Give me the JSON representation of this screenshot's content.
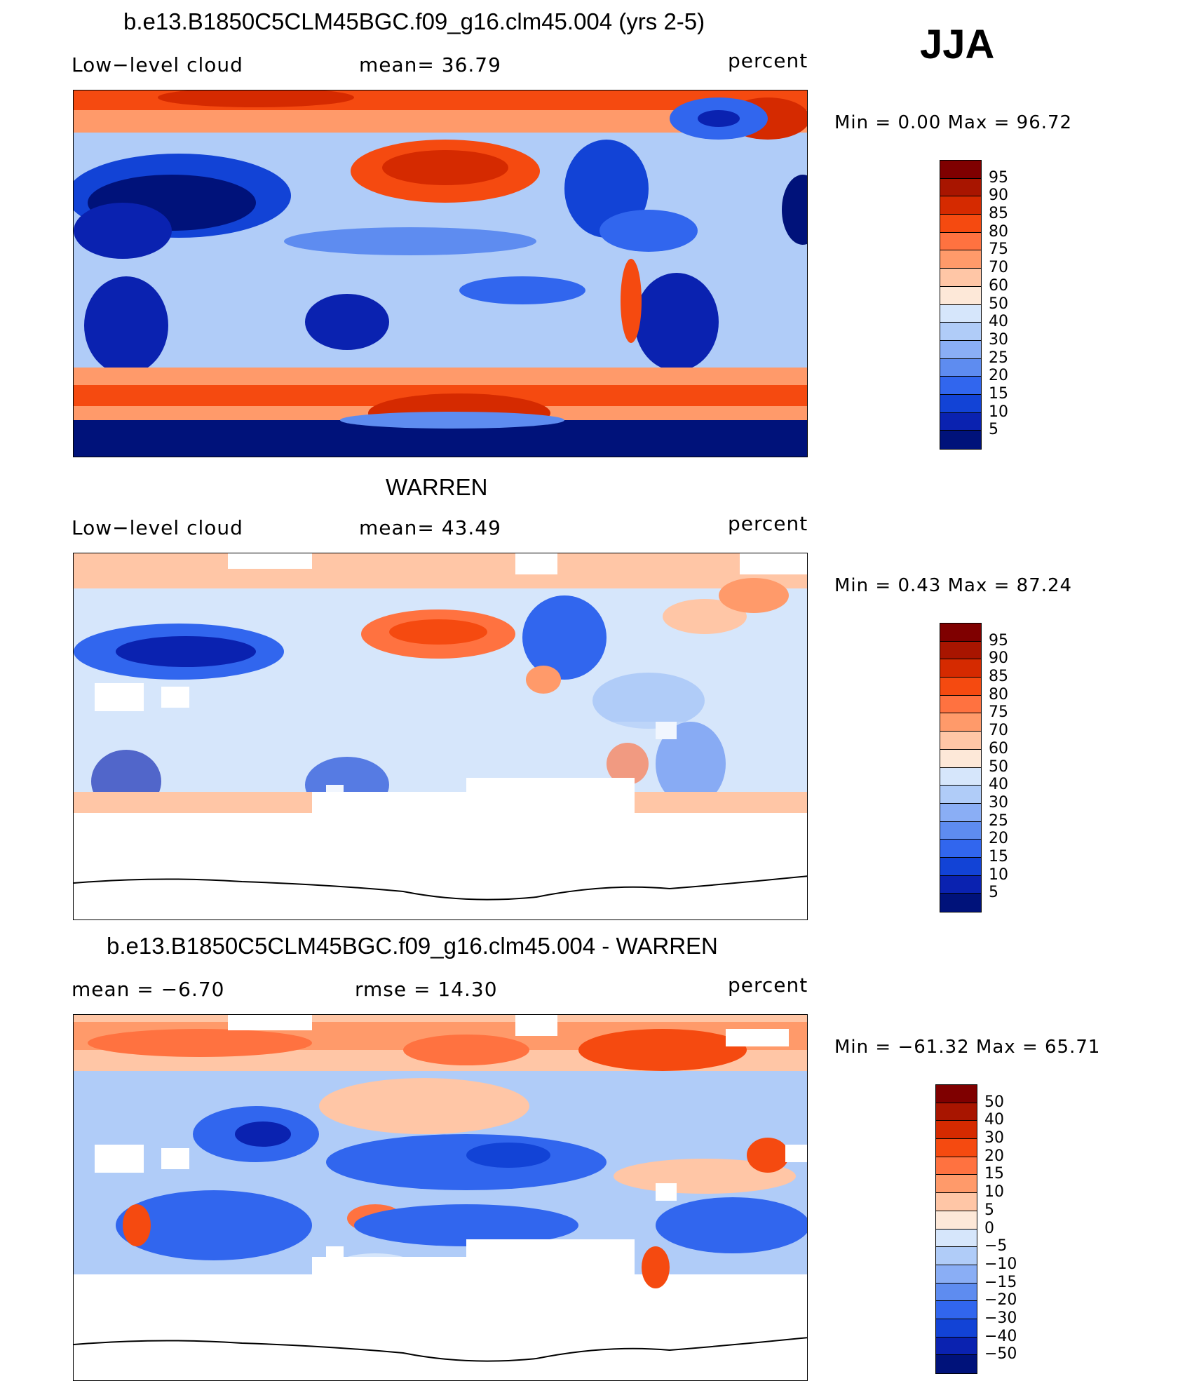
{
  "season": "JJA",
  "panels": [
    {
      "id": "model",
      "title": "b.e13.B1850C5CLM45BGC.f09_g16.clm45.004 (yrs 2-5)",
      "left_label": "Low−level  cloud",
      "mid_label": "mean=   36.79",
      "units": "percent",
      "minmax": "Min  =      0.00  Max  =     96.72",
      "colorbar": {
        "labels": [
          "95",
          "90",
          "85",
          "80",
          "75",
          "70",
          "60",
          "50",
          "40",
          "30",
          "25",
          "20",
          "15",
          "10",
          "5"
        ],
        "colors": [
          "#7f0000",
          "#a81500",
          "#d52a00",
          "#f54a10",
          "#ff7240",
          "#ff9a6a",
          "#ffc6a6",
          "#fde8d8",
          "#d6e6fb",
          "#b0ccf8",
          "#8aaef5",
          "#5e8cf0",
          "#3166ee",
          "#1243d6",
          "#0a22b0",
          "#00127a"
        ]
      }
    },
    {
      "id": "obs",
      "title": "WARREN",
      "left_label": "Low−level  cloud",
      "mid_label": "mean=   43.49",
      "units": "percent",
      "minmax": "Min  =      0.43  Max  =     87.24",
      "colorbar": {
        "labels": [
          "95",
          "90",
          "85",
          "80",
          "75",
          "70",
          "60",
          "50",
          "40",
          "30",
          "25",
          "20",
          "15",
          "10",
          "5"
        ],
        "colors": [
          "#7f0000",
          "#a81500",
          "#d52a00",
          "#f54a10",
          "#ff7240",
          "#ff9a6a",
          "#ffc6a6",
          "#fde8d8",
          "#d6e6fb",
          "#b0ccf8",
          "#8aaef5",
          "#5e8cf0",
          "#3166ee",
          "#1243d6",
          "#0a22b0",
          "#00127a"
        ]
      }
    },
    {
      "id": "diff",
      "title": "b.e13.B1850C5CLM45BGC.f09_g16.clm45.004 - WARREN",
      "left_label": "mean  =    −6.70",
      "mid_label": "rmse  =    14.30",
      "units": "percent",
      "minmax": "Min  = −61.32  Max  =     65.71",
      "colorbar": {
        "labels": [
          "50",
          "40",
          "30",
          "20",
          "15",
          "10",
          "5",
          "0",
          "−5",
          "−10",
          "−15",
          "−20",
          "−30",
          "−40",
          "−50"
        ],
        "colors": [
          "#7f0000",
          "#a81500",
          "#d52a00",
          "#f54a10",
          "#ff7240",
          "#ff9a6a",
          "#ffc6a6",
          "#fde8d8",
          "#d6e6fb",
          "#b0ccf8",
          "#8aaef5",
          "#5e8cf0",
          "#3166ee",
          "#1243d6",
          "#0a22b0",
          "#00127a"
        ]
      }
    }
  ]
}
